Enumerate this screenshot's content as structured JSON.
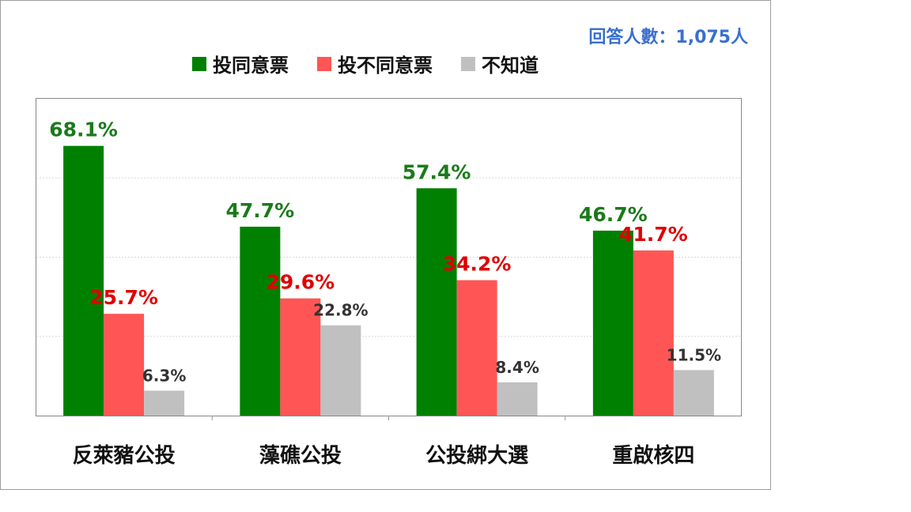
{
  "sample_note": "回答人數：1,075人",
  "colors": {
    "agree": "#008000",
    "disagree": "#ff5555",
    "unknown": "#c0c0c0",
    "agree_text": "#1a7a1a",
    "disagree_text": "#e00000",
    "unknown_text": "#333333"
  },
  "chart_data": {
    "type": "bar",
    "categories": [
      "反萊豬公投",
      "藻礁公投",
      "公投綁大選",
      "重啟核四"
    ],
    "series": [
      {
        "name": "投同意票",
        "values": [
          68.1,
          47.7,
          57.4,
          46.7
        ]
      },
      {
        "name": "投不同意票",
        "values": [
          25.7,
          29.6,
          34.2,
          41.7
        ]
      },
      {
        "name": "不知道",
        "values": [
          6.3,
          22.8,
          8.4,
          11.5
        ]
      }
    ],
    "value_labels": [
      [
        "68.1%",
        "47.7%",
        "57.4%",
        "46.7%"
      ],
      [
        "25.7%",
        "29.6%",
        "34.2%",
        "41.7%"
      ],
      [
        "6.3%",
        "22.8%",
        "8.4%",
        "11.5%"
      ]
    ],
    "ylim": [
      0,
      80
    ],
    "grid": true,
    "legend_position": "top"
  }
}
